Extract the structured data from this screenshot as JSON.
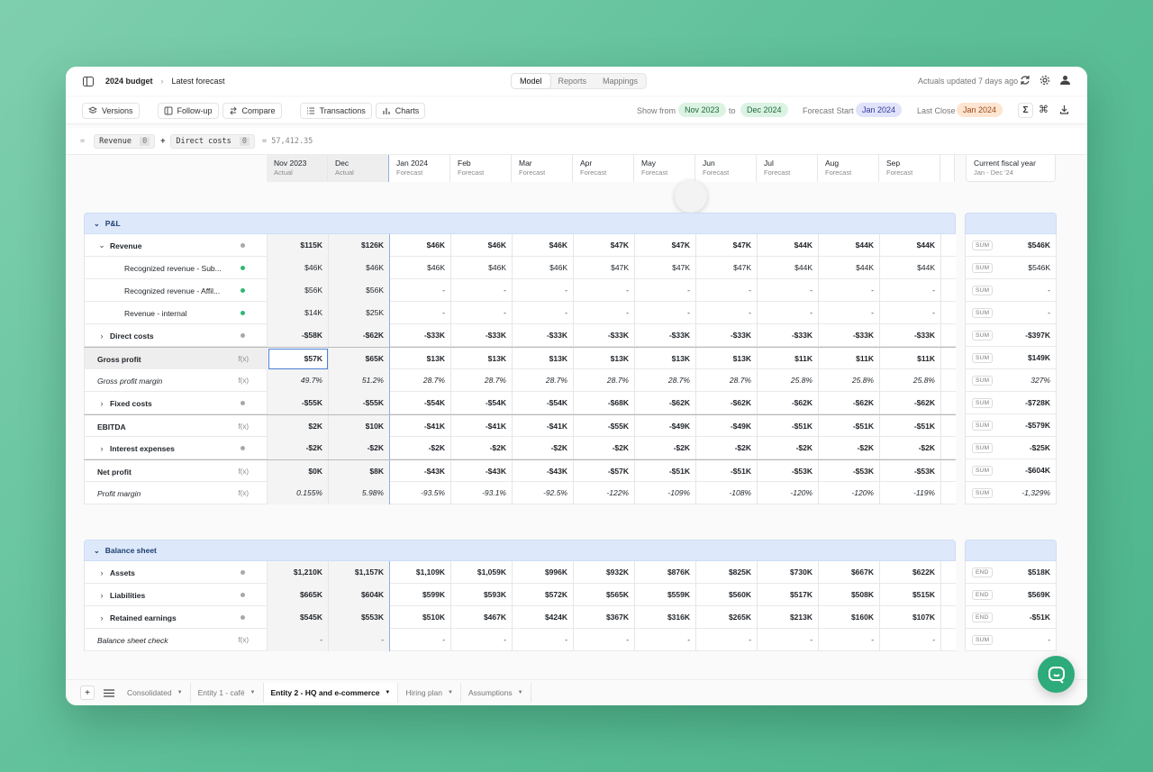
{
  "topbar": {
    "breadcrumb": [
      "2024 budget",
      "Latest forecast"
    ],
    "tabs": [
      "Model",
      "Reports",
      "Mappings"
    ],
    "active_tab": "Model",
    "status": "Actuals updated 7 days ago"
  },
  "toolbar": {
    "buttons": [
      "Versions",
      "Follow-up",
      "Compare",
      "Transactions",
      "Charts"
    ],
    "show_from_label": "Show from",
    "show_from": "Nov 2023",
    "to_label": "to",
    "show_to": "Dec 2024",
    "forecast_start_label": "Forecast Start",
    "forecast_start": "Jan 2024",
    "last_close_label": "Last Close",
    "last_close": "Jan 2024"
  },
  "formula": {
    "eq": "=",
    "a": "Revenue",
    "a_idx": "0",
    "op": "+",
    "b": "Direct costs",
    "b_idx": "0",
    "result": "= 57,412.35"
  },
  "columns": [
    {
      "name": "Nov 2023",
      "sub": "Actual"
    },
    {
      "name": "Dec",
      "sub": "Actual"
    },
    {
      "name": "Jan 2024",
      "sub": "Forecast"
    },
    {
      "name": "Feb",
      "sub": "Forecast"
    },
    {
      "name": "Mar",
      "sub": "Forecast"
    },
    {
      "name": "Apr",
      "sub": "Forecast"
    },
    {
      "name": "May",
      "sub": "Forecast"
    },
    {
      "name": "Jun",
      "sub": "Forecast"
    },
    {
      "name": "Jul",
      "sub": "Forecast"
    },
    {
      "name": "Aug",
      "sub": "Forecast"
    },
    {
      "name": "Sep",
      "sub": "Forecast"
    }
  ],
  "summary_col": {
    "name": "Current fiscal year",
    "sub": "Jan - Dec '24"
  },
  "pl": {
    "title": "P&L",
    "rows": [
      {
        "label": "Revenue",
        "indent": 1,
        "chev": "down",
        "bold": true,
        "marker": "dot-grey",
        "values": [
          "$115K",
          "$126K",
          "$46K",
          "$46K",
          "$46K",
          "$47K",
          "$47K",
          "$47K",
          "$44K",
          "$44K",
          "$44K"
        ],
        "tag": "SUM",
        "total": "$546K"
      },
      {
        "label": "Recognized revenue - Sub...",
        "indent": 2,
        "marker": "dot-green",
        "values": [
          "$46K",
          "$46K",
          "$46K",
          "$46K",
          "$46K",
          "$47K",
          "$47K",
          "$47K",
          "$44K",
          "$44K",
          "$44K"
        ],
        "tag": "SUM",
        "total": "$546K"
      },
      {
        "label": "Recognized revenue - Affil...",
        "indent": 2,
        "marker": "dot-green",
        "values": [
          "$56K",
          "$56K",
          "-",
          "-",
          "-",
          "-",
          "-",
          "-",
          "-",
          "-",
          "-"
        ],
        "tag": "SUM",
        "total": "-"
      },
      {
        "label": "Revenue - internal",
        "indent": 2,
        "marker": "dot-green",
        "values": [
          "$14K",
          "$25K",
          "-",
          "-",
          "-",
          "-",
          "-",
          "-",
          "-",
          "-",
          "-"
        ],
        "tag": "SUM",
        "total": "-"
      },
      {
        "label": "Direct costs",
        "indent": 1,
        "chev": "right",
        "bold": true,
        "marker": "dot-grey",
        "values": [
          "-$58K",
          "-$62K",
          "-$33K",
          "-$33K",
          "-$33K",
          "-$33K",
          "-$33K",
          "-$33K",
          "-$33K",
          "-$33K",
          "-$33K"
        ],
        "tag": "SUM",
        "total": "-$397K"
      },
      {
        "label": "Gross profit",
        "indent": 0,
        "bold": true,
        "marker": "fx",
        "thick": true,
        "values": [
          "$57K",
          "$65K",
          "$13K",
          "$13K",
          "$13K",
          "$13K",
          "$13K",
          "$13K",
          "$11K",
          "$11K",
          "$11K"
        ],
        "tag": "SUM",
        "total": "$149K"
      },
      {
        "label": "Gross profit margin",
        "indent": 0,
        "italic": true,
        "marker": "fx",
        "values": [
          "49.7%",
          "51.2%",
          "28.7%",
          "28.7%",
          "28.7%",
          "28.7%",
          "28.7%",
          "28.7%",
          "25.8%",
          "25.8%",
          "25.8%"
        ],
        "tag": "SUM",
        "total": "327%"
      },
      {
        "label": "Fixed costs",
        "indent": 1,
        "chev": "right",
        "bold": true,
        "marker": "dot-grey",
        "values": [
          "-$55K",
          "-$55K",
          "-$54K",
          "-$54K",
          "-$54K",
          "-$68K",
          "-$62K",
          "-$62K",
          "-$62K",
          "-$62K",
          "-$62K"
        ],
        "tag": "SUM",
        "total": "-$728K"
      },
      {
        "label": "EBITDA",
        "indent": 0,
        "bold": true,
        "marker": "fx",
        "thick": true,
        "values": [
          "$2K",
          "$10K",
          "-$41K",
          "-$41K",
          "-$41K",
          "-$55K",
          "-$49K",
          "-$49K",
          "-$51K",
          "-$51K",
          "-$51K"
        ],
        "tag": "SUM",
        "total": "-$579K"
      },
      {
        "label": "Interest expenses",
        "indent": 1,
        "chev": "right",
        "bold": true,
        "marker": "dot-grey",
        "values": [
          "-$2K",
          "-$2K",
          "-$2K",
          "-$2K",
          "-$2K",
          "-$2K",
          "-$2K",
          "-$2K",
          "-$2K",
          "-$2K",
          "-$2K"
        ],
        "tag": "SUM",
        "total": "-$25K"
      },
      {
        "label": "Net profit",
        "indent": 0,
        "bold": true,
        "marker": "fx",
        "thick": true,
        "values": [
          "$0K",
          "$8K",
          "-$43K",
          "-$43K",
          "-$43K",
          "-$57K",
          "-$51K",
          "-$51K",
          "-$53K",
          "-$53K",
          "-$53K"
        ],
        "tag": "SUM",
        "total": "-$604K"
      },
      {
        "label": "Profit margin",
        "indent": 0,
        "italic": true,
        "marker": "fx",
        "values": [
          "0.155%",
          "5.98%",
          "-93.5%",
          "-93.1%",
          "-92.5%",
          "-122%",
          "-109%",
          "-108%",
          "-120%",
          "-120%",
          "-119%"
        ],
        "tag": "SUM",
        "total": "-1,329%"
      }
    ]
  },
  "bs": {
    "title": "Balance sheet",
    "rows": [
      {
        "label": "Assets",
        "indent": 1,
        "chev": "right",
        "bold": true,
        "marker": "dot-grey",
        "values": [
          "$1,210K",
          "$1,157K",
          "$1,109K",
          "$1,059K",
          "$996K",
          "$932K",
          "$876K",
          "$825K",
          "$730K",
          "$667K",
          "$622K"
        ],
        "tag": "END",
        "total": "$518K"
      },
      {
        "label": "Liabilities",
        "indent": 1,
        "chev": "right",
        "bold": true,
        "marker": "dot-grey",
        "values": [
          "$665K",
          "$604K",
          "$599K",
          "$593K",
          "$572K",
          "$565K",
          "$559K",
          "$560K",
          "$517K",
          "$508K",
          "$515K"
        ],
        "tag": "END",
        "total": "$569K"
      },
      {
        "label": "Retained earnings",
        "indent": 1,
        "chev": "right",
        "bold": true,
        "marker": "dot-grey",
        "values": [
          "$545K",
          "$553K",
          "$510K",
          "$467K",
          "$424K",
          "$367K",
          "$316K",
          "$265K",
          "$213K",
          "$160K",
          "$107K"
        ],
        "tag": "END",
        "total": "-$51K"
      },
      {
        "label": "Balance sheet check",
        "indent": 0,
        "italic": true,
        "marker": "fx",
        "values": [
          "-",
          "-",
          "-",
          "-",
          "-",
          "-",
          "-",
          "-",
          "-",
          "-",
          "-"
        ],
        "tag": "SUM",
        "total": "-"
      }
    ]
  },
  "sheet_tabs": [
    "Consolidated",
    "Entity 1 - café",
    "Entity 2 - HQ and e-commerce",
    "Hiring plan",
    "Assumptions"
  ],
  "active_sheet": "Entity 2 - HQ and e-commerce",
  "fx_label": "f(x)",
  "colors": {
    "green_dot": "#2eb872",
    "grey_dot": "#a8a8a8",
    "section_bg": "#dde9fb",
    "accent": "#2dab7a"
  }
}
